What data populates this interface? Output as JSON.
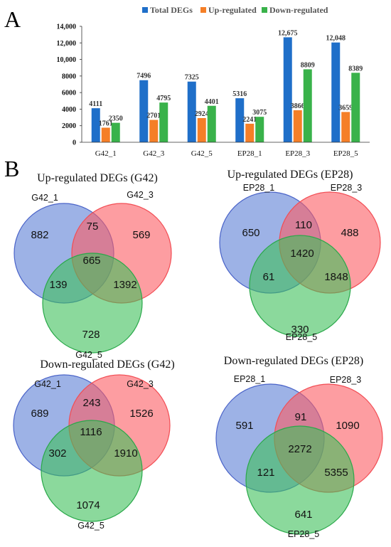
{
  "panels": {
    "a": "A",
    "b": "B"
  },
  "colors": {
    "total": "#1f6fc9",
    "up": "#f57f27",
    "down": "#39b24a",
    "circle1": "#5b7fd6",
    "circle2": "#fb5c63",
    "circle3": "#3ec05a"
  },
  "chart_data": {
    "type": "bar",
    "categories": [
      "G42_1",
      "G42_3",
      "G42_5",
      "EP28_1",
      "EP28_3",
      "EP28_5"
    ],
    "series": [
      {
        "name": "Total DEGs",
        "values": [
          4111,
          7496,
          7325,
          5316,
          12675,
          12048
        ],
        "labels": [
          "4111",
          "7496",
          "7325",
          "5316",
          "12,675",
          "12,048"
        ]
      },
      {
        "name": "Up-regulated",
        "values": [
          1761,
          2701,
          2924,
          2241,
          3866,
          3659
        ],
        "labels": [
          "1761",
          "2701",
          "2924",
          "2241",
          "3866",
          "3659"
        ]
      },
      {
        "name": "Down-regulated",
        "values": [
          2350,
          4795,
          4401,
          3075,
          8809,
          8389
        ],
        "labels": [
          "2350",
          "4795",
          "4401",
          "3075",
          "8809",
          "8389"
        ]
      }
    ],
    "yticks": [
      0,
      2000,
      4000,
      6000,
      8000,
      10000,
      12000,
      14000
    ],
    "ytick_labels": [
      "0",
      "2000",
      "4000",
      "6000",
      "8000",
      "10,000",
      "12,000",
      "14,000"
    ],
    "ylim": [
      0,
      14000
    ],
    "legend_position": "top"
  },
  "venns": [
    {
      "title": "Up-regulated DEGs (G42)",
      "sets": [
        "G42_1",
        "G42_3",
        "G42_5"
      ],
      "regions": {
        "only1": "882",
        "only2": "569",
        "only3": "728",
        "r12": "75",
        "r13": "139",
        "r23": "1392",
        "r123": "665"
      }
    },
    {
      "title": "Up-regulated DEGs (EP28)",
      "sets": [
        "EP28_1",
        "EP28_3",
        "EP28_5"
      ],
      "regions": {
        "only1": "650",
        "only2": "488",
        "only3": "330",
        "r12": "110",
        "r13": "61",
        "r23": "1848",
        "r123": "1420"
      }
    },
    {
      "title": "Down-regulated DEGs (G42)",
      "sets": [
        "G42_1",
        "G42_3",
        "G42_5"
      ],
      "regions": {
        "only1": "689",
        "only2": "1526",
        "only3": "1074",
        "r12": "243",
        "r13": "302",
        "r23": "1910",
        "r123": "1116"
      }
    },
    {
      "title": "Down-regulated DEGs (EP28)",
      "sets": [
        "EP28_1",
        "EP28_3",
        "EP28_5"
      ],
      "regions": {
        "only1": "591",
        "only2": "1090",
        "only3": "641",
        "r12": "91",
        "r13": "121",
        "r23": "5355",
        "r123": "2272"
      }
    }
  ]
}
